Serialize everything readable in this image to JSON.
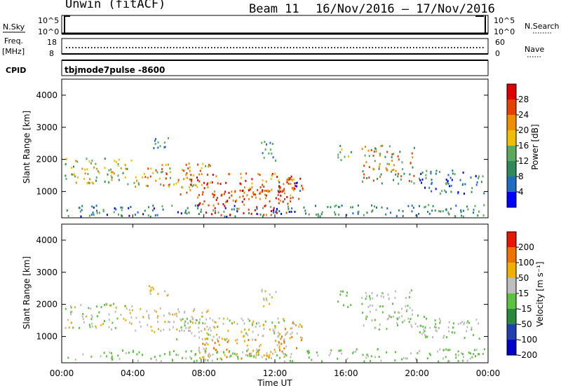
{
  "header": {
    "station": "Unwin (fitACF)",
    "beam": "Beam 11",
    "dates": "16/Nov/2016 – 17/Nov/2016"
  },
  "chart_data": [
    {
      "type": "line",
      "panel": "noise",
      "left_label": "N.Sky",
      "right_label": "N.Search",
      "y_left_ticks": [
        "10^5",
        "10^0"
      ],
      "y_right_ticks": [
        "10^5",
        "10^0"
      ],
      "yscale": "log"
    },
    {
      "type": "line",
      "panel": "frequency",
      "left_label_line1": "Freq.",
      "left_label_line2": "[MHz]",
      "right_label": "Nave",
      "y_left_ticks": [
        "18",
        "8"
      ],
      "y_right_ticks": [
        "60",
        "0"
      ],
      "ylim_left": [
        8,
        18
      ],
      "ylim_right": [
        0,
        60
      ]
    },
    {
      "type": "table",
      "panel": "cpid",
      "label": "CPID",
      "value": "tbjmode7pulse -8600"
    },
    {
      "type": "heatmap",
      "panel": "power",
      "ylabel": "Slant Range [km]",
      "xlabel": "",
      "yticks": [
        "1000",
        "2000",
        "3000",
        "4000"
      ],
      "ylim": [
        180,
        4500
      ],
      "colorbar": {
        "label": "Power [dB]",
        "ticks": [
          "4",
          "8",
          "12",
          "16",
          "20",
          "24",
          "28"
        ],
        "colors": [
          "#0000ff",
          "#1f6cc0",
          "#2e8b57",
          "#5ca85c",
          "#f0c000",
          "#f08c00",
          "#e84000",
          "#e00000"
        ]
      }
    },
    {
      "type": "heatmap",
      "panel": "velocity",
      "ylabel": "Slant Range [km]",
      "xlabel": "Time UT",
      "yticks": [
        "1000",
        "2000",
        "3000",
        "4000"
      ],
      "ylim": [
        180,
        4500
      ],
      "colorbar": {
        "label": "Velocity [m s⁻¹]",
        "ticks": [
          "200",
          "100",
          "50",
          "15",
          "-15",
          "-50",
          "-100",
          "-200"
        ],
        "colors": [
          "#0000cc",
          "#2040b0",
          "#2a8a3c",
          "#5cc040",
          "#bdbdbd",
          "#f0b000",
          "#f07000",
          "#e81800"
        ]
      }
    }
  ],
  "x_axis": {
    "tick_labels": [
      "00:00",
      "04:00",
      "08:00",
      "12:00",
      "16:00",
      "20:00",
      "00:00"
    ],
    "title": "Time UT"
  }
}
